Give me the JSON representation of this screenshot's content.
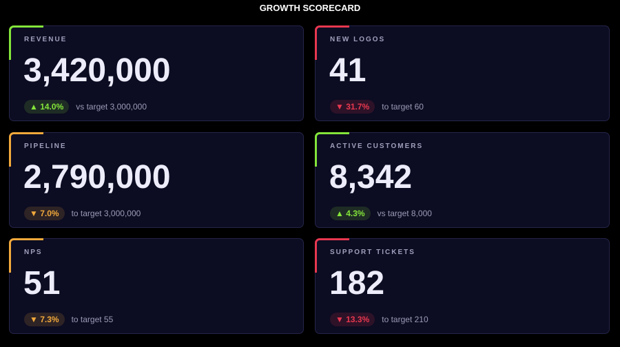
{
  "header": {
    "title": "GROWTH SCORECARD"
  },
  "cards": [
    {
      "label": "REVENUE",
      "value": "3,420,000",
      "change": "▲ 14.0%",
      "note": "vs target 3,000,000",
      "color": "#84e53a"
    },
    {
      "label": "NEW LOGOS",
      "value": "41",
      "change": "▼ 31.7%",
      "note": "to target 60",
      "color": "#e8384f"
    },
    {
      "label": "PIPELINE",
      "value": "2,790,000",
      "change": "▼ 7.0%",
      "note": "to target 3,000,000",
      "color": "#f2a93b"
    },
    {
      "label": "ACTIVE CUSTOMERS",
      "value": "8,342",
      "change": "▲ 4.3%",
      "note": "vs target 8,000",
      "color": "#84e53a"
    },
    {
      "label": "NPS",
      "value": "51",
      "change": "▼ 7.3%",
      "note": "to target 55",
      "color": "#f2a93b"
    },
    {
      "label": "SUPPORT TICKETS",
      "value": "182",
      "change": "▼ 13.3%",
      "note": "to target 210",
      "color": "#e8384f"
    }
  ]
}
